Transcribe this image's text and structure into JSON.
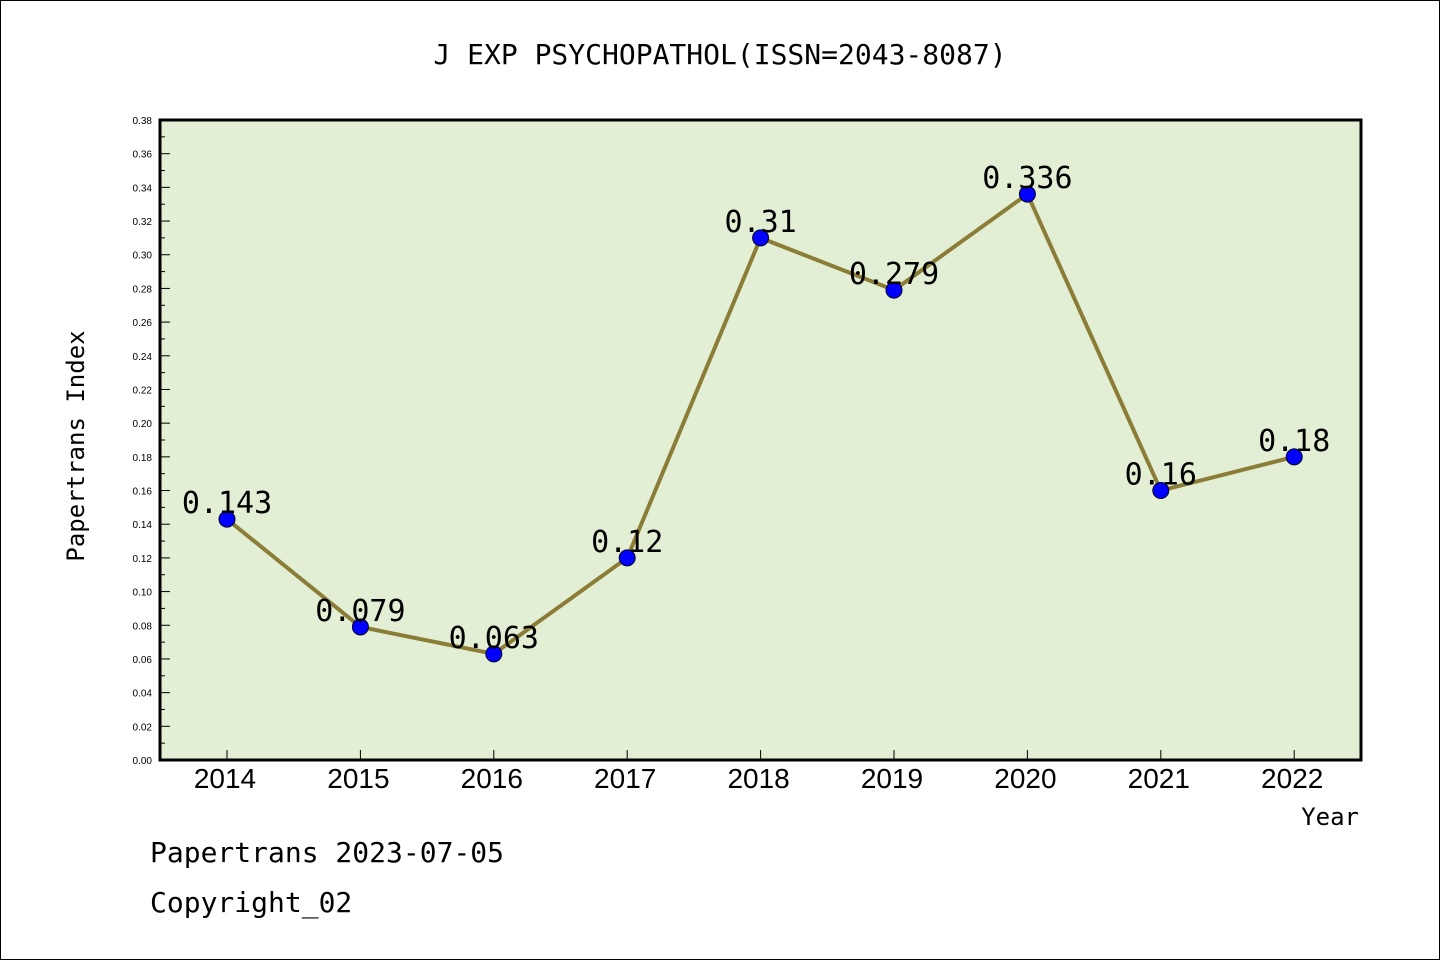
{
  "chart_data": {
    "type": "line",
    "title": "J EXP PSYCHOPATHOL(ISSN=2043-8087)",
    "xlabel": "Year",
    "ylabel": "Papertrans Index",
    "categories": [
      "2014",
      "2015",
      "2016",
      "2017",
      "2018",
      "2019",
      "2020",
      "2021",
      "2022"
    ],
    "values": [
      0.143,
      0.079,
      0.063,
      0.12,
      0.31,
      0.279,
      0.336,
      0.16,
      0.18
    ],
    "data_labels": [
      "0.143",
      "0.079",
      "0.063",
      "0.12",
      "0.31",
      "0.279",
      "0.336",
      "0.16",
      "0.18"
    ],
    "ylim": [
      0,
      0.38
    ],
    "yticks": [
      "0.00",
      "0.02",
      "0.04",
      "0.06",
      "0.08",
      "0.10",
      "0.12",
      "0.14",
      "0.16",
      "0.18",
      "0.20",
      "0.22",
      "0.24",
      "0.26",
      "0.28",
      "0.30",
      "0.32",
      "0.34",
      "0.36",
      "0.38"
    ],
    "grid": false,
    "colors": {
      "plot_background": "#e2efd4",
      "line": "#8b7d37",
      "marker": "#0000ff"
    }
  },
  "footer": {
    "line1": "Papertrans 2023-07-05",
    "line2": "Copyright_02"
  }
}
